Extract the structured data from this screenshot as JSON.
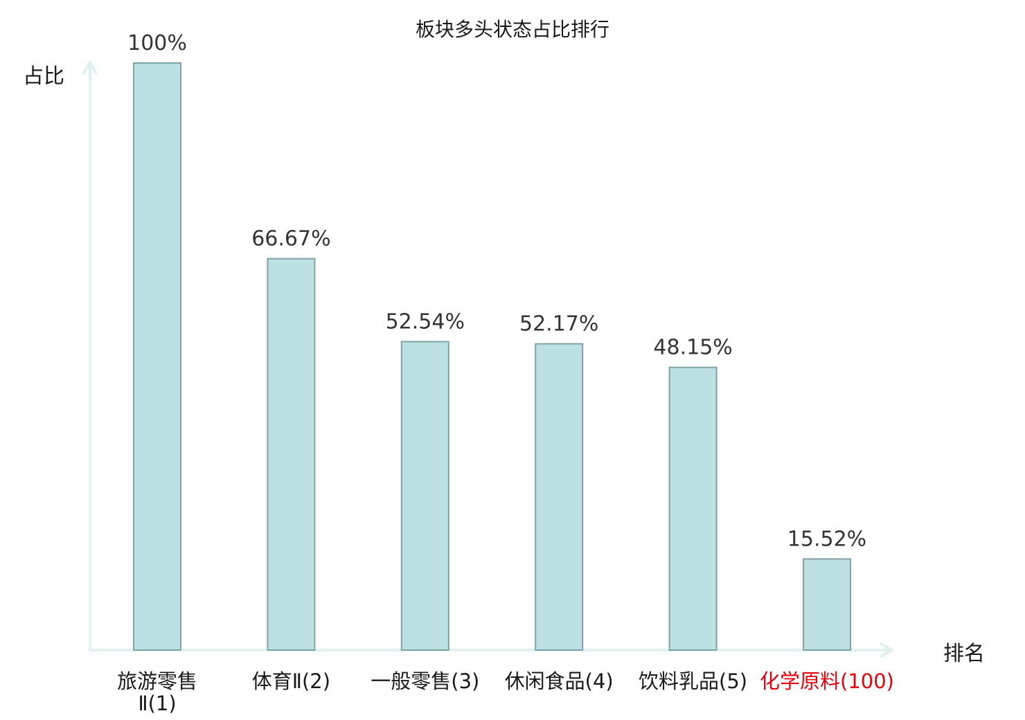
{
  "chart_data": {
    "type": "bar",
    "title": "板块多头状态占比排行",
    "ylabel": "占比",
    "xlabel": "排名",
    "ylim": [
      0,
      100
    ],
    "grid": false,
    "categories": [
      "旅游零售Ⅱ(1)",
      "体育Ⅱ(2)",
      "一般零售(3)",
      "休闲食品(4)",
      "饮料乳品(5)",
      "化学原料(100)"
    ],
    "values": [
      100,
      66.67,
      52.54,
      52.17,
      48.15,
      15.52
    ],
    "value_labels": [
      "100%",
      "66.67%",
      "52.54%",
      "52.17%",
      "48.15%",
      "15.52%"
    ],
    "highlight_category": "化学原料(100)",
    "colors": {
      "bar_fill": "#bce0e3",
      "bar_stroke": "#7fa2a5",
      "axis": "#dff2ef",
      "highlight_text": "#e8000b"
    }
  }
}
